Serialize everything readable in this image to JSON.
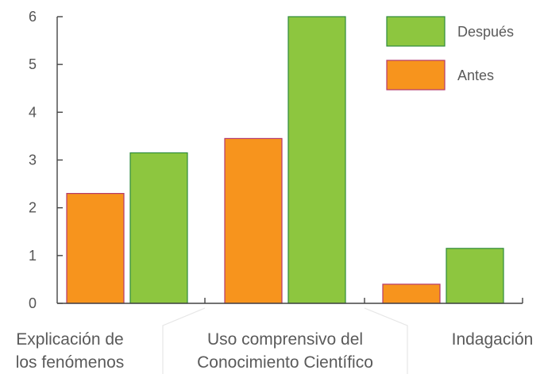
{
  "chart_data": {
    "type": "bar",
    "categories": [
      [
        "Explicación de",
        "los fenómenos"
      ],
      [
        "Uso comprensivo del",
        "Conocimiento Científico"
      ],
      [
        "Indagación"
      ]
    ],
    "series": [
      {
        "name": "Antes",
        "values": [
          2.3,
          3.45,
          0.4
        ],
        "color": "#f7941d",
        "stroke": "#b5396b"
      },
      {
        "name": "Después",
        "values": [
          3.15,
          6.0,
          1.15
        ],
        "color": "#8dc63f",
        "stroke": "#2e8b3d"
      }
    ],
    "yticks": [
      0,
      1,
      2,
      3,
      4,
      5,
      6
    ],
    "ylim": [
      0,
      6
    ],
    "legend": {
      "placement": "top-right",
      "order": [
        "Después",
        "Antes"
      ]
    },
    "grid": false,
    "axis_color": "#444444"
  }
}
